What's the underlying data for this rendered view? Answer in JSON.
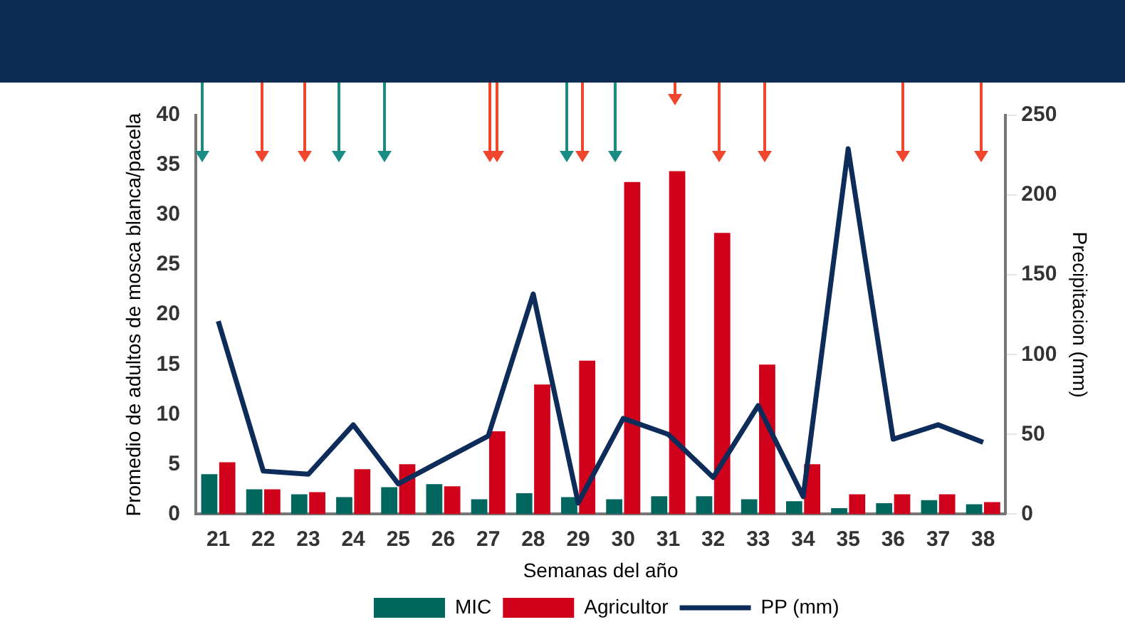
{
  "chart_data": {
    "type": "bar",
    "xlabel": "Semanas del año",
    "ylabel": "Promedio de adultos de mosca blanca/pacela",
    "y2label": "Precipitacion (mm)",
    "categories": [
      "21",
      "22",
      "23",
      "24",
      "25",
      "26",
      "27",
      "28",
      "29",
      "30",
      "31",
      "32",
      "33",
      "34",
      "35",
      "36",
      "37",
      "38"
    ],
    "series": [
      {
        "name": "MIC",
        "color": "#00665e",
        "values": [
          4,
          2.5,
          2,
          1.7,
          2.7,
          3,
          1.5,
          2.1,
          1.7,
          1.5,
          1.8,
          1.8,
          1.5,
          1.3,
          0.6,
          1.1,
          1.4,
          1
        ]
      },
      {
        "name": "Agricultor",
        "color": "#d0021b",
        "values": [
          5.2,
          2.5,
          2.2,
          4.5,
          5,
          2.8,
          8.3,
          13,
          15.4,
          33.3,
          34.4,
          28.2,
          15,
          5,
          2,
          2,
          2,
          1.2
        ]
      },
      {
        "name": "PP (mm)",
        "type": "line",
        "axis": "y2",
        "color": "#0d2c5a",
        "values": [
          121,
          27,
          25,
          56,
          19,
          34,
          49,
          138,
          7,
          60,
          50,
          23,
          68,
          11,
          229,
          47,
          56,
          45
        ]
      }
    ],
    "ylim": [
      0,
      40
    ],
    "yticks": [
      0,
      5,
      10,
      15,
      20,
      25,
      30,
      35,
      40
    ],
    "y2lim": [
      0,
      250
    ],
    "y2ticks": [
      0,
      50,
      100,
      150,
      200,
      250
    ],
    "grid": false,
    "legend": "bottom",
    "marker": "none",
    "line_style": "solid"
  }
}
